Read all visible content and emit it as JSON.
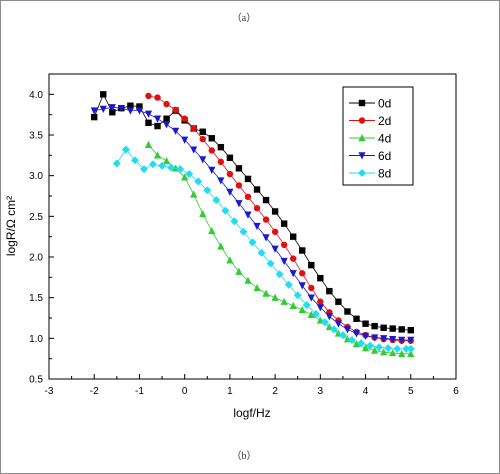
{
  "captions": {
    "top": "（a）",
    "bottom": "（b）"
  },
  "chart_data": {
    "type": "scatter",
    "xlabel": "logf/Hz",
    "ylabel": "logR/Ω cm²",
    "xlim": [
      -3,
      6
    ],
    "ylim": [
      0.5,
      4.25
    ],
    "xticks": [
      -3,
      -2,
      -1,
      0,
      1,
      2,
      3,
      4,
      5,
      6
    ],
    "yticks": [
      0.5,
      1.0,
      1.5,
      2.0,
      2.5,
      3.0,
      3.5,
      4.0
    ],
    "grid": false,
    "legend_position": "top-right",
    "series": [
      {
        "name": "0d",
        "color": "#000000",
        "marker": "square",
        "x": [
          -2.0,
          -1.8,
          -1.6,
          -1.4,
          -1.2,
          -1.0,
          -0.8,
          -0.6,
          -0.4,
          -0.2,
          0.0,
          0.2,
          0.4,
          0.6,
          0.8,
          1.0,
          1.2,
          1.4,
          1.6,
          1.8,
          2.0,
          2.2,
          2.4,
          2.6,
          2.8,
          3.0,
          3.2,
          3.4,
          3.6,
          3.8,
          4.0,
          4.2,
          4.4,
          4.6,
          4.8,
          5.0
        ],
        "y": [
          3.72,
          4.0,
          3.78,
          3.83,
          3.86,
          3.85,
          3.65,
          3.61,
          3.7,
          3.8,
          3.68,
          3.58,
          3.54,
          3.46,
          3.35,
          3.22,
          3.09,
          2.96,
          2.83,
          2.7,
          2.56,
          2.41,
          2.25,
          2.08,
          1.9,
          1.74,
          1.58,
          1.45,
          1.33,
          1.24,
          1.18,
          1.15,
          1.13,
          1.12,
          1.11,
          1.1
        ]
      },
      {
        "name": "2d",
        "color": "#e01010",
        "marker": "circle",
        "x": [
          -0.8,
          -0.6,
          -0.4,
          -0.2,
          0.0,
          0.2,
          0.4,
          0.6,
          0.8,
          1.0,
          1.2,
          1.4,
          1.6,
          1.8,
          2.0,
          2.2,
          2.4,
          2.6,
          2.8,
          3.0,
          3.2,
          3.4,
          3.6,
          3.8,
          4.0,
          4.2,
          4.4,
          4.6,
          4.8,
          5.0
        ],
        "y": [
          3.98,
          3.96,
          3.88,
          3.81,
          3.7,
          3.58,
          3.45,
          3.31,
          3.17,
          3.02,
          2.88,
          2.74,
          2.6,
          2.46,
          2.31,
          2.15,
          1.98,
          1.8,
          1.62,
          1.45,
          1.32,
          1.22,
          1.14,
          1.08,
          1.04,
          1.01,
          0.99,
          0.98,
          0.97,
          0.97
        ]
      },
      {
        "name": "4d",
        "color": "#33cc33",
        "marker": "triangle-up",
        "x": [
          -0.8,
          -0.6,
          -0.4,
          -0.2,
          0.0,
          0.2,
          0.4,
          0.6,
          0.8,
          1.0,
          1.2,
          1.4,
          1.6,
          1.8,
          2.0,
          2.2,
          2.4,
          2.6,
          2.8,
          3.0,
          3.2,
          3.4,
          3.6,
          3.8,
          4.0,
          4.2,
          4.4,
          4.6,
          4.8,
          5.0
        ],
        "y": [
          3.38,
          3.25,
          3.18,
          3.09,
          2.98,
          2.77,
          2.53,
          2.32,
          2.13,
          1.96,
          1.82,
          1.71,
          1.62,
          1.55,
          1.5,
          1.45,
          1.4,
          1.35,
          1.29,
          1.22,
          1.14,
          1.06,
          0.99,
          0.93,
          0.88,
          0.85,
          0.83,
          0.82,
          0.81,
          0.81
        ]
      },
      {
        "name": "6d",
        "color": "#1a1acc",
        "marker": "triangle-down",
        "x": [
          -2.0,
          -1.8,
          -1.6,
          -1.4,
          -1.2,
          -1.0,
          -0.8,
          -0.6,
          -0.4,
          -0.2,
          0.0,
          0.2,
          0.4,
          0.6,
          0.8,
          1.0,
          1.2,
          1.4,
          1.6,
          1.8,
          2.0,
          2.2,
          2.4,
          2.6,
          2.8,
          3.0,
          3.2,
          3.4,
          3.6,
          3.8,
          4.0,
          4.2,
          4.4,
          4.6,
          4.8,
          5.0
        ],
        "y": [
          3.8,
          3.82,
          3.84,
          3.83,
          3.8,
          3.8,
          3.76,
          3.7,
          3.63,
          3.55,
          3.44,
          3.32,
          3.2,
          3.07,
          2.94,
          2.8,
          2.66,
          2.52,
          2.38,
          2.24,
          2.1,
          1.95,
          1.8,
          1.65,
          1.5,
          1.38,
          1.27,
          1.18,
          1.11,
          1.06,
          1.03,
          1.01,
          1.0,
          0.99,
          0.98,
          0.98
        ]
      },
      {
        "name": "8d",
        "color": "#22ddee",
        "marker": "diamond",
        "x": [
          -1.5,
          -1.3,
          -1.1,
          -0.9,
          -0.7,
          -0.5,
          -0.3,
          -0.1,
          0.1,
          0.3,
          0.5,
          0.7,
          0.9,
          1.1,
          1.3,
          1.5,
          1.7,
          1.9,
          2.1,
          2.3,
          2.5,
          2.7,
          2.9,
          3.1,
          3.3,
          3.5,
          3.7,
          3.9,
          4.1,
          4.3,
          4.5,
          4.7,
          4.9,
          5.0
        ],
        "y": [
          3.15,
          3.32,
          3.19,
          3.08,
          3.14,
          3.12,
          3.1,
          3.08,
          3.02,
          2.93,
          2.82,
          2.7,
          2.57,
          2.44,
          2.31,
          2.18,
          2.05,
          1.92,
          1.79,
          1.66,
          1.53,
          1.41,
          1.3,
          1.2,
          1.11,
          1.04,
          0.98,
          0.94,
          0.91,
          0.89,
          0.88,
          0.87,
          0.87,
          0.87
        ]
      }
    ]
  }
}
